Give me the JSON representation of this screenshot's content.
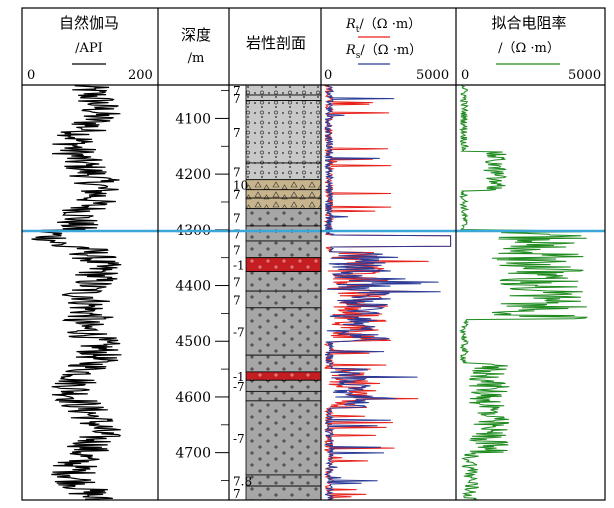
{
  "colors": {
    "gr": "#000000",
    "rt": "#e8231c",
    "rs": "#2b3a96",
    "fit": "#1e8a1e",
    "marker": "#3aa7d8",
    "sandstone": "#c8c8c8",
    "igneous": "#a6a6a6",
    "red_layer": "#c41e22",
    "conglomerate": "#c8b48c"
  },
  "tracks": {
    "gr": {
      "title": "自然伽马",
      "unit": "/API",
      "min": "0",
      "max": "200"
    },
    "depth": {
      "title": "深度",
      "unit": "/m"
    },
    "lith": {
      "title": "岩性剖面"
    },
    "res": {
      "rt_label": "R",
      "rt_sub": "t",
      "rt_unit": "/（Ω ·m）",
      "rs_label": "R",
      "rs_sub": "s",
      "rs_unit": "/（Ω ·m）",
      "min": "0",
      "max": "5000"
    },
    "fit": {
      "title": "拟合电阻率",
      "unit": "/（Ω ·m）",
      "min": "0",
      "max": "5000"
    }
  },
  "chart_data": {
    "type": "line",
    "depth_range": [
      4040,
      4785
    ],
    "depth_ticks": [
      4100,
      4200,
      4300,
      4400,
      4500,
      4600,
      4700
    ],
    "depth_labels": [
      "4100",
      "4200",
      "4300",
      "4400",
      "4500",
      "4600",
      "4700"
    ],
    "marker_depth": 4302,
    "series": [
      {
        "key": "gr",
        "xlim": [
          0,
          200
        ]
      },
      {
        "key": "rt",
        "xlim": [
          0,
          5000
        ]
      },
      {
        "key": "rs",
        "xlim": [
          0,
          5000
        ]
      },
      {
        "key": "fit",
        "xlim": [
          0,
          5000
        ]
      }
    ],
    "lithology": [
      {
        "top": 4040,
        "bottom": 4058,
        "type": "sandstone",
        "label": "7"
      },
      {
        "top": 4058,
        "bottom": 4068,
        "type": "sandstone",
        "label": "7"
      },
      {
        "top": 4068,
        "bottom": 4180,
        "type": "sandstone",
        "label": "7"
      },
      {
        "top": 4180,
        "bottom": 4210,
        "type": "sandstone",
        "label": "7"
      },
      {
        "top": 4210,
        "bottom": 4228,
        "type": "conglomerate",
        "label": "10"
      },
      {
        "top": 4228,
        "bottom": 4243,
        "type": "conglomerate",
        "label": "7"
      },
      {
        "top": 4243,
        "bottom": 4262,
        "type": "conglomerate",
        "label": ""
      },
      {
        "top": 4262,
        "bottom": 4293,
        "type": "igneous",
        "label": "7"
      },
      {
        "top": 4293,
        "bottom": 4320,
        "type": "igneous",
        "label": "7"
      },
      {
        "top": 4320,
        "bottom": 4350,
        "type": "igneous",
        "label": "7"
      },
      {
        "top": 4350,
        "bottom": 4375,
        "type": "red",
        "label": "-1"
      },
      {
        "top": 4375,
        "bottom": 4410,
        "type": "igneous",
        "label": "7"
      },
      {
        "top": 4410,
        "bottom": 4440,
        "type": "igneous",
        "label": "7"
      },
      {
        "top": 4440,
        "bottom": 4525,
        "type": "igneous",
        "label": "-7"
      },
      {
        "top": 4525,
        "bottom": 4555,
        "type": "igneous",
        "label": ""
      },
      {
        "top": 4555,
        "bottom": 4570,
        "type": "red",
        "label": "-1"
      },
      {
        "top": 4570,
        "bottom": 4590,
        "type": "igneous",
        "label": "-7"
      },
      {
        "top": 4590,
        "bottom": 4607,
        "type": "igneous",
        "label": ""
      },
      {
        "top": 4607,
        "bottom": 4740,
        "type": "igneous",
        "label": "-7"
      },
      {
        "top": 4740,
        "bottom": 4760,
        "type": "igneous",
        "label": "7.8"
      },
      {
        "top": 4760,
        "bottom": 4785,
        "type": "igneous",
        "label": "7"
      }
    ]
  }
}
